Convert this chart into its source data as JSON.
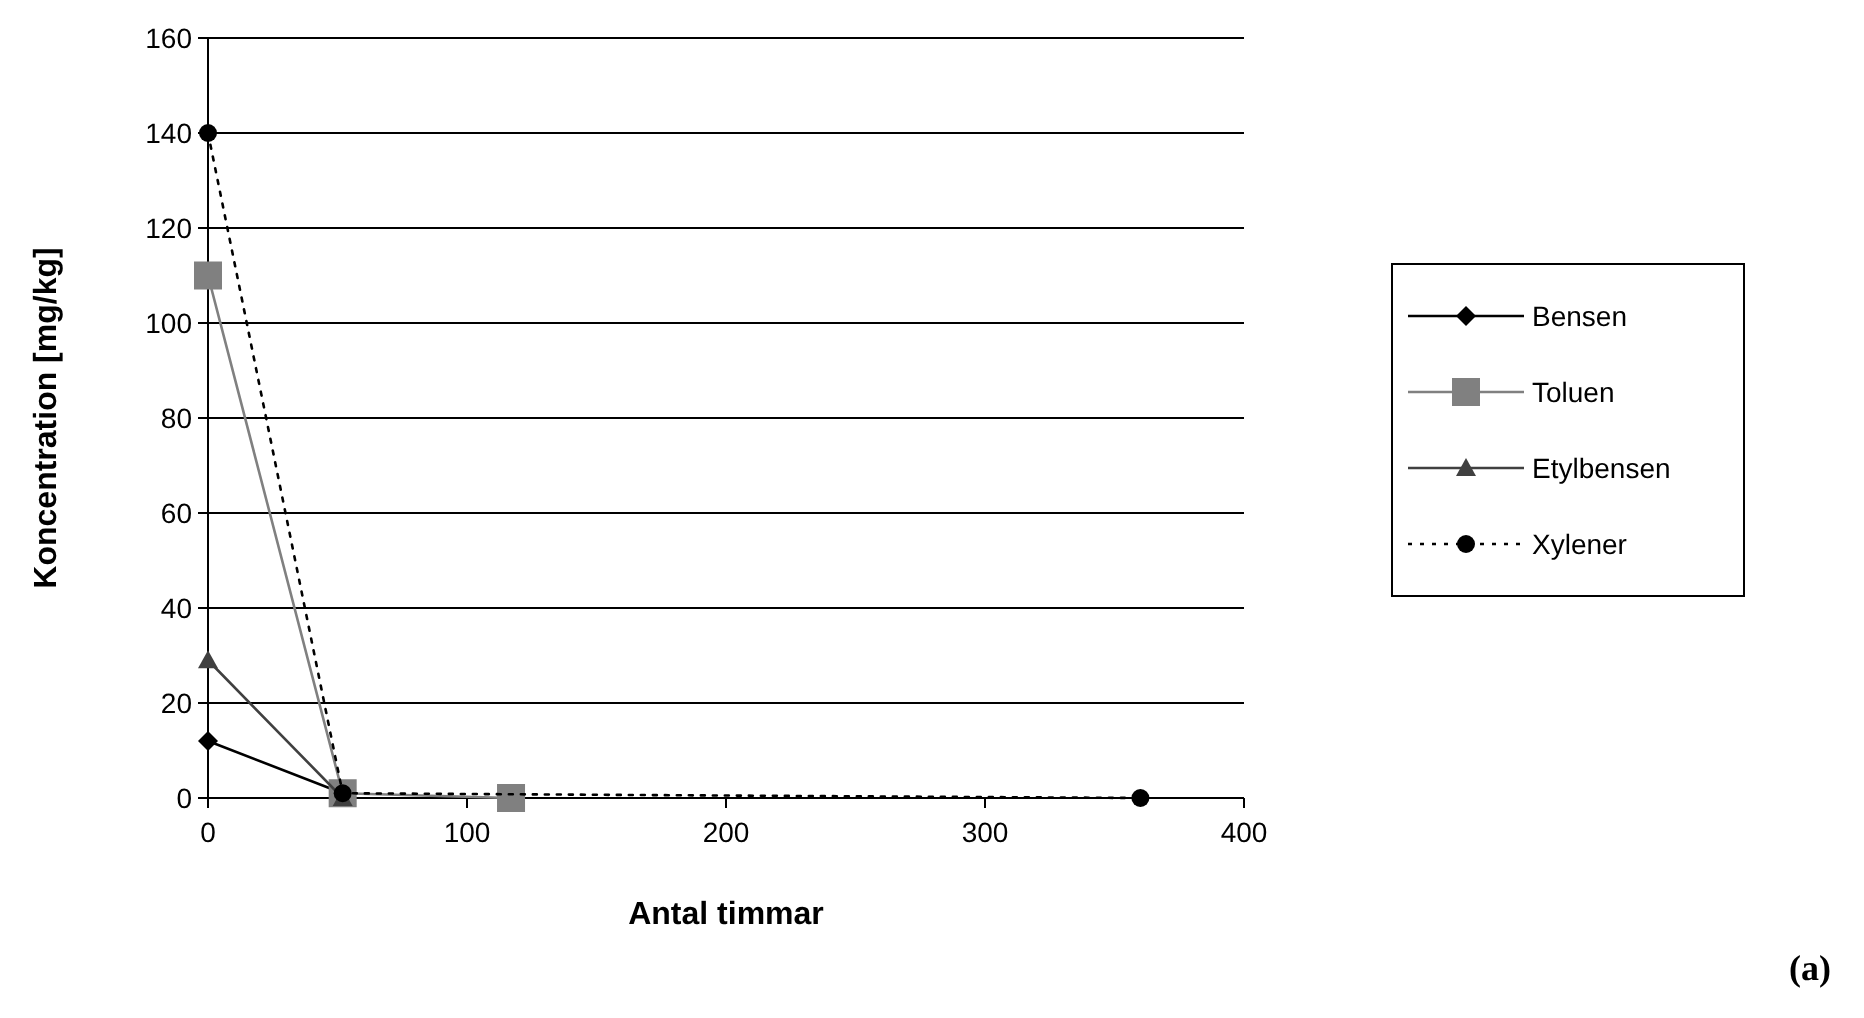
{
  "chart_data": {
    "type": "line",
    "xlabel": "Antal timmar",
    "ylabel": "Koncentration [mg/kg]",
    "annotations": [
      "(a)"
    ],
    "xlim": [
      0,
      400
    ],
    "xticks": [
      0,
      100,
      200,
      300,
      400
    ],
    "ylim": [
      0,
      160
    ],
    "yticks": [
      0,
      20,
      40,
      60,
      80,
      100,
      120,
      140,
      160
    ],
    "grid": "y",
    "legend": "right",
    "series": [
      {
        "name": "Bensen",
        "color": "#000000",
        "marker": "diamond",
        "line_style": "solid",
        "x": [
          0,
          52
        ],
        "values": [
          12,
          1
        ]
      },
      {
        "name": "Toluen",
        "color": "#808080",
        "marker": "square",
        "line_style": "solid",
        "x": [
          0,
          52,
          117
        ],
        "values": [
          110,
          1,
          0
        ]
      },
      {
        "name": "Etylbensen",
        "color": "#404040",
        "marker": "triangle",
        "line_style": "solid",
        "x": [
          0,
          52
        ],
        "values": [
          29,
          0
        ]
      },
      {
        "name": "Xylener",
        "color": "#000000",
        "marker": "circle",
        "line_style": "dotted",
        "x": [
          0,
          52,
          360
        ],
        "values": [
          140,
          1,
          0
        ]
      }
    ]
  }
}
